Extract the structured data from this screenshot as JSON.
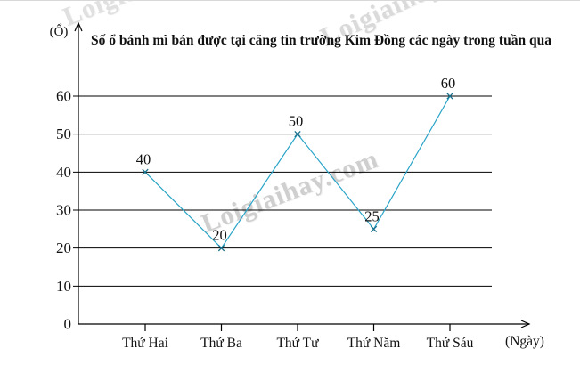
{
  "title": "Số ổ bánh mì bán được tại căng tin trường Kim Đồng các ngày trong tuần qua",
  "watermark": {
    "text": "Loigiaihay.com"
  },
  "chart_data": {
    "type": "line",
    "categories": [
      "Thứ Hai",
      "Thứ Ba",
      "Thứ Tư",
      "Thứ Năm",
      "Thứ Sáu"
    ],
    "values": [
      40,
      20,
      50,
      25,
      60
    ],
    "title": "Số ổ bánh mì bán được tại căng tin trường Kim Đồng các ngày trong tuần qua",
    "xlabel": "(Ngày)",
    "ylabel": "(Ổ)",
    "y_ticks": [
      0,
      10,
      20,
      30,
      40,
      50,
      60
    ],
    "ylim": [
      0,
      65
    ],
    "grid": true,
    "legend_position": "none",
    "marker": "x",
    "colors": {
      "line": "#2aa4c8",
      "marker": "#17718d",
      "axis": "#000000",
      "gridline": "#000000",
      "text": "#111111"
    }
  }
}
